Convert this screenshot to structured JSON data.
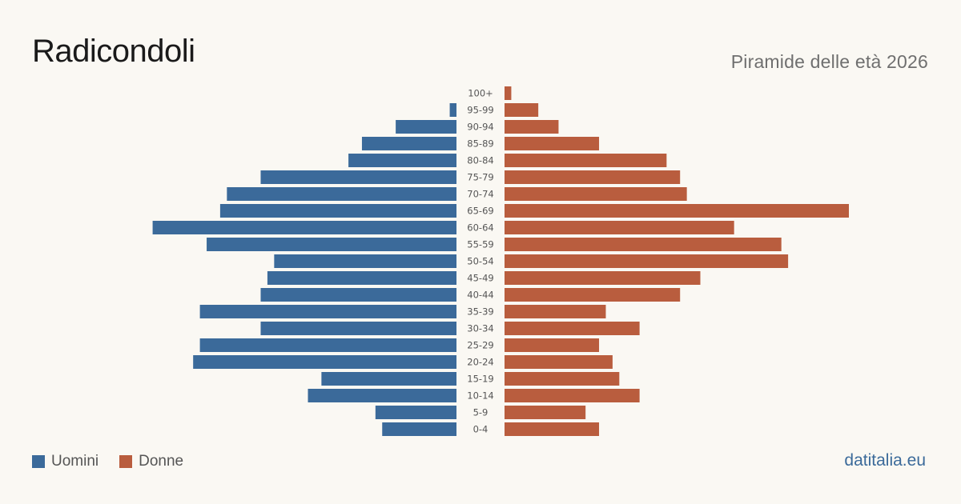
{
  "header": {
    "title": "Radicondoli",
    "subtitle": "Piramide delle età 2026"
  },
  "legend": {
    "men_label": "Uomini",
    "women_label": "Donne"
  },
  "source": "datitalia.eu",
  "colors": {
    "men": "#3b6a9a",
    "women": "#b95d3e",
    "background": "#faf8f3"
  },
  "chart_data": {
    "type": "bar",
    "orientation": "horizontal-pyramid",
    "categories": [
      "0-4",
      "5-9",
      "10-14",
      "15-19",
      "20-24",
      "25-29",
      "30-34",
      "35-39",
      "40-44",
      "45-49",
      "50-54",
      "55-59",
      "60-64",
      "65-69",
      "70-74",
      "75-79",
      "80-84",
      "85-89",
      "90-94",
      "95-99",
      "100+"
    ],
    "series": [
      {
        "name": "Uomini",
        "values": [
          11,
          12,
          22,
          20,
          39,
          38,
          29,
          38,
          29,
          28,
          27,
          37,
          45,
          35,
          34,
          29,
          16,
          14,
          9,
          1,
          0
        ]
      },
      {
        "name": "Donne",
        "values": [
          14,
          12,
          20,
          17,
          16,
          14,
          20,
          15,
          26,
          29,
          42,
          41,
          34,
          51,
          27,
          26,
          24,
          14,
          8,
          5,
          1
        ]
      }
    ],
    "xlim": [
      0,
      51
    ]
  }
}
